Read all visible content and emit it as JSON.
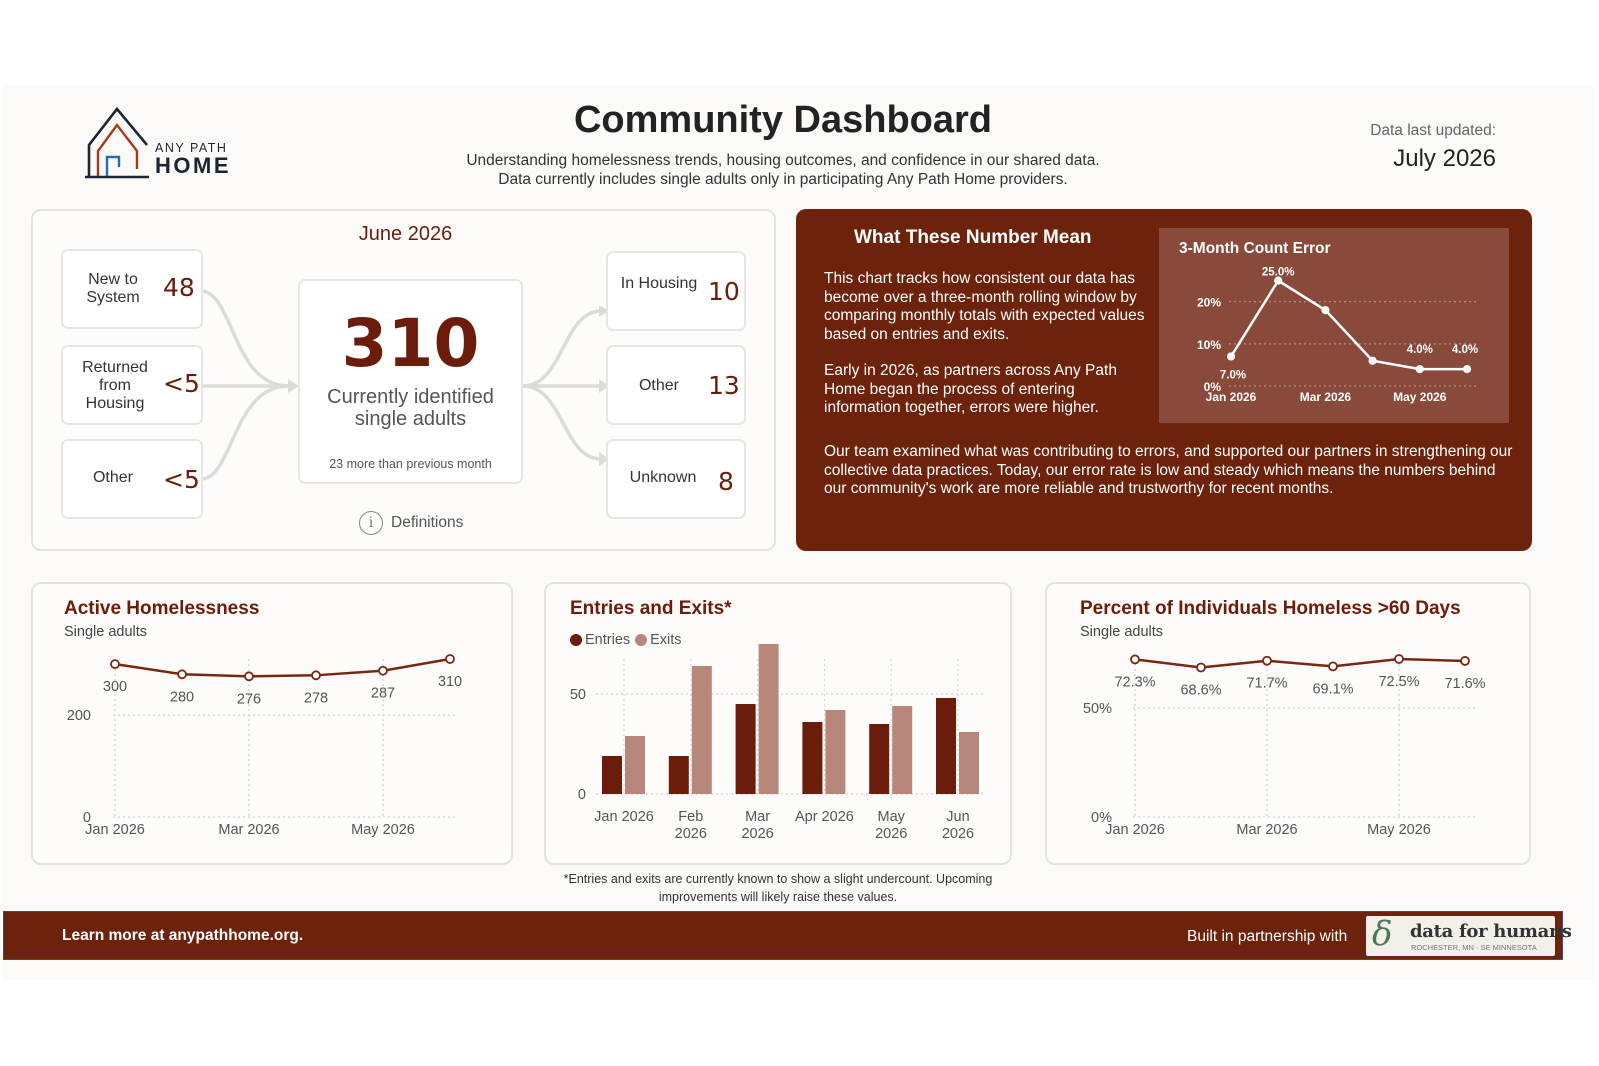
{
  "header": {
    "logo_line1": "ANY PATH",
    "logo_line2": "HOME",
    "title": "Community Dashboard",
    "subtitle_line1": "Understanding homelessness trends, housing outcomes, and confidence in our shared data.",
    "subtitle_line2": "Data currently includes single adults only in participating Any Path Home providers.",
    "updated_label": "Data last updated:",
    "updated_value": "July 2026"
  },
  "summary": {
    "month": "June 2026",
    "inflows": [
      {
        "label": "New to System",
        "value": "48"
      },
      {
        "label": "Returned from Housing",
        "value": "<5"
      },
      {
        "label": "Other",
        "value": "<5"
      }
    ],
    "center_value": "310",
    "center_label": "Currently identified single adults",
    "center_note": "23 more than previous month",
    "outflows": [
      {
        "label": "In Housing",
        "value": "10"
      },
      {
        "label": "Other",
        "value": "13"
      },
      {
        "label": "Unknown",
        "value": "8"
      }
    ],
    "definitions_label": "Definitions",
    "info_icon": "info-circle-icon"
  },
  "explain": {
    "heading": "What These Number Mean",
    "para1": "This chart tracks how consistent our data has become over a three-month rolling window by comparing monthly totals with expected values based on entries and exits.",
    "para2": "Early in 2026, as partners across Any Path Home began the process of entering information together, errors were higher.",
    "para3": "Our team examined what was contributing to errors, and supported our partners in strengthening our collective data practices.  Today, our error rate is low and steady which means the numbers behind our community's work are more reliable and trustworthy for recent months."
  },
  "chart_data": [
    {
      "id": "count-error",
      "type": "line",
      "title": "3-Month Count Error",
      "x": [
        "Jan 2026",
        "Feb 2026",
        "Mar 2026",
        "Apr 2026",
        "May 2026",
        "Jun 2026"
      ],
      "x_tick_labels": [
        "Jan 2026",
        "Mar 2026",
        "May 2026"
      ],
      "values": [
        7.0,
        25.0,
        18.0,
        6.0,
        4.0,
        4.0
      ],
      "value_labels": [
        "7.0%",
        "25.0%",
        "",
        "",
        "4.0%",
        "4.0%"
      ],
      "y_tick_labels": [
        "0%",
        "10%",
        "20%"
      ],
      "ylim": [
        0,
        28
      ],
      "grid": true
    },
    {
      "id": "active-homelessness",
      "type": "line",
      "title": "Active Homelessness",
      "subtitle": "Single adults",
      "x": [
        "Jan 2026",
        "Feb 2026",
        "Mar 2026",
        "Apr 2026",
        "May 2026",
        "Jun 2026"
      ],
      "x_tick_labels": [
        "Jan 2026",
        "Mar 2026",
        "May 2026"
      ],
      "values": [
        300,
        280,
        276,
        278,
        287,
        310
      ],
      "value_labels": [
        "300",
        "280",
        "276",
        "278",
        "287",
        "310"
      ],
      "y_tick_labels": [
        "0",
        "200"
      ],
      "ylim": [
        0,
        310
      ],
      "grid": true
    },
    {
      "id": "entries-exits",
      "type": "bar",
      "title": "Entries and Exits*",
      "categories": [
        "Jan 2026",
        "Feb 2026",
        "Mar 2026",
        "Apr 2026",
        "May 2026",
        "Jun 2026"
      ],
      "category_lines": [
        [
          "Jan 2026"
        ],
        [
          "Feb",
          "2026"
        ],
        [
          "Mar",
          "2026"
        ],
        [
          "Apr 2026"
        ],
        [
          "May",
          "2026"
        ],
        [
          "Jun",
          "2026"
        ]
      ],
      "series": [
        {
          "name": "Entries",
          "color": "#6b1c0a",
          "values": [
            19,
            19,
            45,
            36,
            35,
            48
          ]
        },
        {
          "name": "Exits",
          "color": "#b8877c",
          "values": [
            29,
            64,
            75,
            42,
            44,
            31
          ]
        }
      ],
      "y_tick_labels": [
        "0",
        "50"
      ],
      "ylim": [
        0,
        80
      ],
      "legend": "top-left",
      "footnote": "*Entries and exits are currently known to show a slight undercount.  Upcoming improvements will likely raise these values."
    },
    {
      "id": "pct-60-days",
      "type": "line",
      "title": "Percent of Individuals Homeless >60 Days",
      "subtitle": "Single adults",
      "x": [
        "Jan 2026",
        "Feb 2026",
        "Mar 2026",
        "Apr 2026",
        "May 2026",
        "Jun 2026"
      ],
      "x_tick_labels": [
        "Jan 2026",
        "Mar 2026",
        "May 2026"
      ],
      "values": [
        72.3,
        68.6,
        71.7,
        69.1,
        72.5,
        71.6
      ],
      "value_labels": [
        "72.3%",
        "68.6%",
        "71.7%",
        "69.1%",
        "72.5%",
        "71.6%"
      ],
      "y_tick_labels": [
        "0%",
        "50%"
      ],
      "ylim": [
        0,
        72.5
      ],
      "grid": true
    }
  ],
  "footer": {
    "learn_more": "Learn more at anypathhome.org.",
    "partner_label": "Built in partnership with",
    "partner_name": "data for humans",
    "partner_tagline": "ROCHESTER, MN · SE MINNESOTA"
  },
  "colors": {
    "brand": "#6b1c0a",
    "exits": "#b8877c",
    "panel": "#6d220c"
  }
}
